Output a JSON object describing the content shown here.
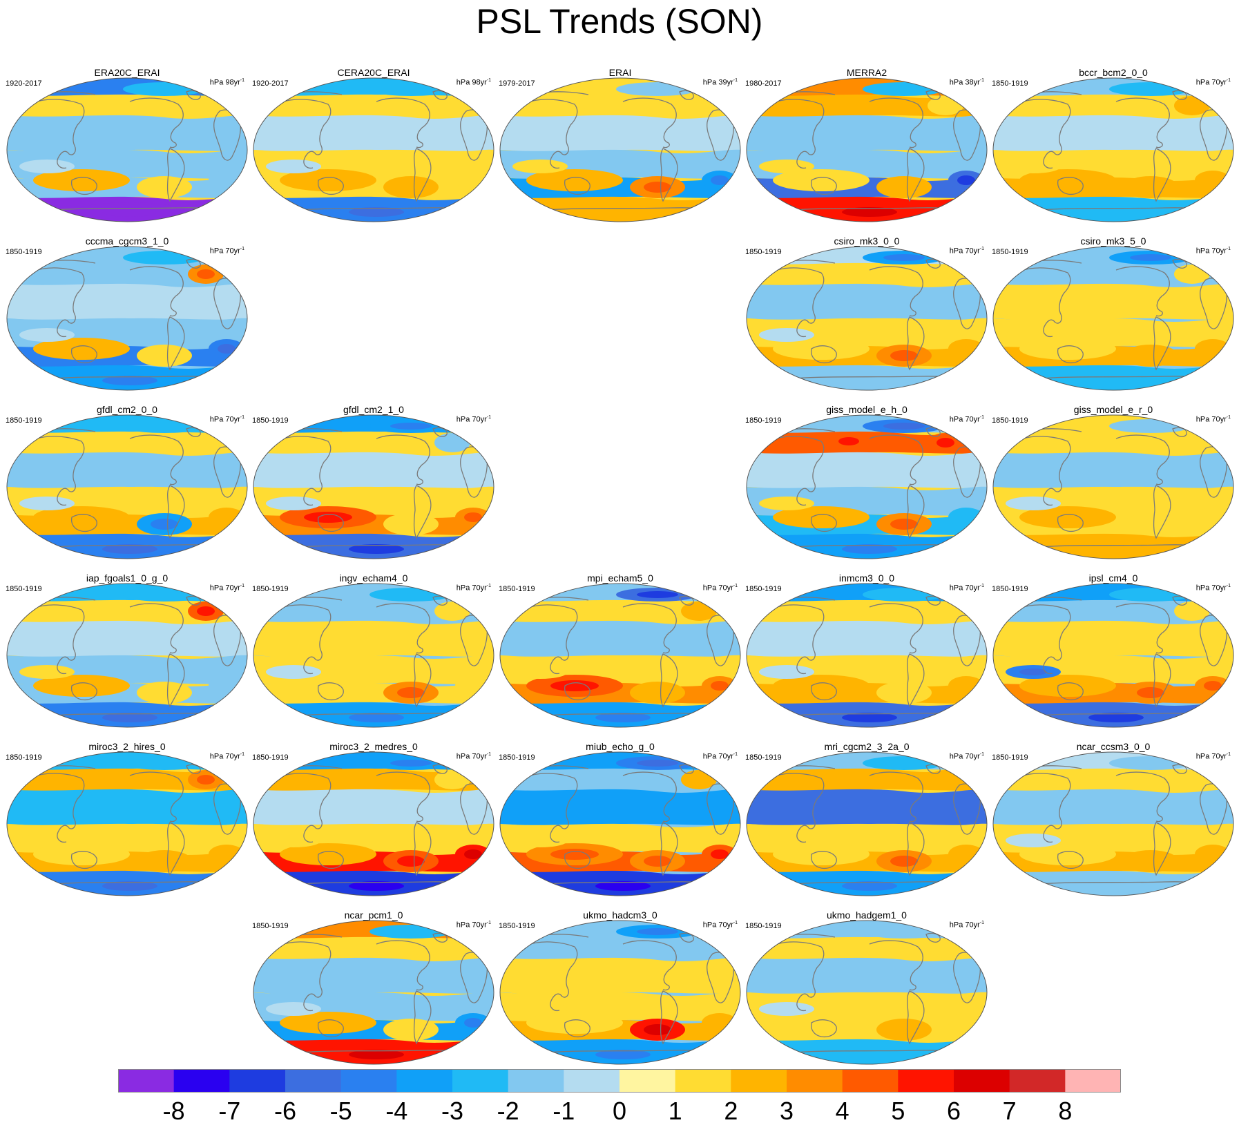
{
  "title": "PSL Trends (SON)",
  "map_style": {
    "projection": "Robinson-like oval, Pacific centered",
    "coastline_color": "#7a7a7a",
    "border_color": "#555555"
  },
  "panels": [
    {
      "name": "ERA20C_ERAI",
      "period": "1920-2017",
      "units": "hPa 98yr",
      "row": 0,
      "col": 0,
      "pattern": [
        1,
        -1,
        1,
        -1,
        -8,
        2,
        1,
        -2,
        0
      ]
    },
    {
      "name": "CERA20C_ERAI",
      "period": "1920-2017",
      "units": "hPa 98yr",
      "row": 0,
      "col": 1,
      "pattern": [
        1,
        0,
        1,
        1,
        -4,
        2,
        2,
        -2,
        0
      ]
    },
    {
      "name": "ERAI",
      "period": "1979-2017",
      "units": "hPa 39yr",
      "row": 0,
      "col": 2,
      "pattern": [
        1,
        0,
        1,
        -3,
        2,
        2,
        3,
        -1,
        1
      ]
    },
    {
      "name": "MERRA2",
      "period": "1980-2017",
      "units": "hPa 38yr",
      "row": 0,
      "col": 3,
      "pattern": [
        2,
        -1,
        1,
        -5,
        5,
        1,
        2,
        -2,
        1
      ]
    },
    {
      "name": "bccr_bcm2_0_0",
      "period": "1850-1919",
      "units": "hPa 70yr",
      "row": 0,
      "col": 4,
      "pattern": [
        1,
        0,
        2,
        2,
        -2,
        2,
        2,
        -2,
        1
      ]
    },
    {
      "name": "cccma_cgcm3_1_0",
      "period": "1850-1919",
      "units": "hPa 70yr",
      "row": 1,
      "col": 0,
      "pattern": [
        -1,
        0,
        3,
        -4,
        -3,
        2,
        1,
        -2,
        0
      ]
    },
    {
      "name": "csiro_mk3_0_0",
      "period": "1850-1919",
      "units": "hPa 70yr",
      "row": 1,
      "col": 3,
      "pattern": [
        1,
        -1,
        1,
        2,
        -1,
        1,
        3,
        -3,
        0
      ]
    },
    {
      "name": "csiro_mk3_5_0",
      "period": "1850-1919",
      "units": "hPa 70yr",
      "row": 1,
      "col": 4,
      "pattern": [
        -1,
        1,
        1,
        2,
        -2,
        1,
        2,
        -3,
        1
      ]
    },
    {
      "name": "gfdl_cm2_0_0",
      "period": "1850-1919",
      "units": "hPa 70yr",
      "row": 2,
      "col": 0,
      "pattern": [
        1,
        -1,
        1,
        2,
        -4,
        2,
        -3,
        -2,
        0
      ]
    },
    {
      "name": "gfdl_cm2_1_0",
      "period": "1850-1919",
      "units": "hPa 70yr",
      "row": 2,
      "col": 1,
      "pattern": [
        1,
        0,
        -1,
        3,
        -5,
        3,
        1,
        -3,
        0
      ]
    },
    {
      "name": "giss_model_e_h_0",
      "period": "1850-1919",
      "units": "hPa 70yr",
      "row": 2,
      "col": 3,
      "pattern": [
        4,
        0,
        4,
        -2,
        -3,
        2,
        3,
        -4,
        1
      ]
    },
    {
      "name": "giss_model_e_r_0",
      "period": "1850-1919",
      "units": "hPa 70yr",
      "row": 2,
      "col": 4,
      "pattern": [
        1,
        -1,
        1,
        1,
        2,
        2,
        1,
        -1,
        0
      ]
    },
    {
      "name": "iap_fgoals1_0_g_0",
      "period": "1850-1919",
      "units": "hPa 70yr",
      "row": 3,
      "col": 0,
      "pattern": [
        1,
        0,
        4,
        -1,
        -4,
        2,
        1,
        -2,
        1
      ]
    },
    {
      "name": "ingv_echam4_0",
      "period": "1850-1919",
      "units": "hPa 70yr",
      "row": 3,
      "col": 1,
      "pattern": [
        -1,
        1,
        1,
        1,
        -3,
        1,
        3,
        -2,
        0
      ]
    },
    {
      "name": "mpi_echam5_0",
      "period": "1850-1919",
      "units": "hPa 70yr",
      "row": 3,
      "col": 2,
      "pattern": [
        1,
        -1,
        2,
        3,
        -3,
        3,
        2,
        -5,
        1
      ]
    },
    {
      "name": "inmcm3_0_0",
      "period": "1850-1919",
      "units": "hPa 70yr",
      "row": 3,
      "col": 3,
      "pattern": [
        1,
        0,
        1,
        2,
        -5,
        2,
        1,
        -2,
        0
      ]
    },
    {
      "name": "ipsl_cm4_0",
      "period": "1850-1919",
      "units": "hPa 70yr",
      "row": 3,
      "col": 4,
      "pattern": [
        -1,
        1,
        1,
        3,
        -5,
        1,
        3,
        -2,
        -4
      ]
    },
    {
      "name": "miroc3_2_hires_0",
      "period": "1850-1919",
      "units": "hPa 70yr",
      "row": 4,
      "col": 0,
      "pattern": [
        2,
        -2,
        3,
        2,
        -4,
        1,
        2,
        -2,
        1
      ]
    },
    {
      "name": "miroc3_2_medres_0",
      "period": "1850-1919",
      "units": "hPa 70yr",
      "row": 4,
      "col": 1,
      "pattern": [
        2,
        0,
        1,
        5,
        -6,
        1,
        4,
        -3,
        1
      ]
    },
    {
      "name": "miub_echo_g_0",
      "period": "1850-1919",
      "units": "hPa 70yr",
      "row": 4,
      "col": 2,
      "pattern": [
        -1,
        -3,
        2,
        4,
        -6,
        2,
        3,
        -4,
        1
      ]
    },
    {
      "name": "mri_cgcm2_3_2a_0",
      "period": "1850-1919",
      "units": "hPa 70yr",
      "row": 4,
      "col": 3,
      "pattern": [
        2,
        -5,
        2,
        2,
        -3,
        1,
        3,
        -2,
        1
      ]
    },
    {
      "name": "ncar_ccsm3_0_0",
      "period": "1850-1919",
      "units": "hPa 70yr",
      "row": 4,
      "col": 4,
      "pattern": [
        1,
        -1,
        1,
        2,
        -1,
        1,
        2,
        -1,
        0
      ]
    },
    {
      "name": "ncar_pcm1_0",
      "period": "1850-1919",
      "units": "hPa 70yr",
      "row": 5,
      "col": 1,
      "pattern": [
        1,
        -1,
        1,
        -3,
        5,
        2,
        1,
        -2,
        0
      ]
    },
    {
      "name": "ukmo_hadcm3_0",
      "period": "1850-1919",
      "units": "hPa 70yr",
      "row": 5,
      "col": 2,
      "pattern": [
        -1,
        1,
        -1,
        2,
        -3,
        1,
        5,
        -3,
        1
      ]
    },
    {
      "name": "ukmo_hadgem1_0",
      "period": "1850-1919",
      "units": "hPa 70yr",
      "row": 5,
      "col": 3,
      "pattern": [
        1,
        -1,
        1,
        1,
        -2,
        1,
        2,
        -1,
        0
      ]
    }
  ],
  "colorbar": {
    "colors": [
      "#8a2be2",
      "#2a00f0",
      "#1e3ce0",
      "#3c6ee0",
      "#2a80f0",
      "#10a0f8",
      "#20baf5",
      "#82c8f0",
      "#b4dcf0",
      "#fff5a0",
      "#ffdc32",
      "#ffb400",
      "#ff8c00",
      "#ff5a00",
      "#ff1400",
      "#dc0000",
      "#d22828",
      "#ffb4b4"
    ],
    "labels": [
      "-8",
      "-7",
      "-6",
      "-5",
      "-4",
      "-3",
      "-2",
      "-1",
      "0",
      "1",
      "2",
      "3",
      "4",
      "5",
      "6",
      "7",
      "8"
    ]
  }
}
